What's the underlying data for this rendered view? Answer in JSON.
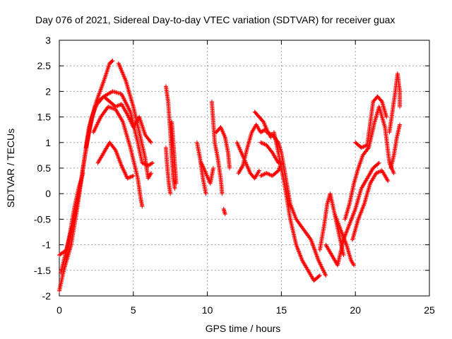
{
  "chart_data": {
    "type": "scatter",
    "title": "Day 076 of 2021, Sidereal Day-to-day VTEC variation (SDTVAR) for receiver guax",
    "xlabel": "GPS time / hours",
    "ylabel": "SDTVAR / TECUs",
    "xlim": [
      0,
      25
    ],
    "ylim": [
      -2,
      3
    ],
    "xticks": [
      "0",
      "5",
      "10",
      "15",
      "20",
      "25"
    ],
    "yticks": [
      "-2",
      "-1.5",
      "-1",
      "-0.5",
      "0",
      "0.5",
      "1",
      "1.5",
      "2",
      "2.5",
      "3"
    ],
    "xtick_values": [
      0,
      5,
      10,
      15,
      20,
      25
    ],
    "ytick_values": [
      -2,
      -1.5,
      -1,
      -0.5,
      0,
      0.5,
      1,
      1.5,
      2,
      2.5,
      3
    ],
    "grid": true,
    "marker": "+",
    "series": [
      {
        "name": "SDTVAR",
        "color": "#ff0000",
        "tracks": [
          [
            [
              0,
              -1.9
            ],
            [
              0.3,
              -1.5
            ],
            [
              0.8,
              -1.0
            ],
            [
              1.2,
              -0.3
            ],
            [
              1.6,
              0.5
            ],
            [
              2.0,
              1.2
            ],
            [
              2.4,
              1.7
            ],
            [
              3.0,
              1.9
            ],
            [
              3.6,
              2.0
            ],
            [
              4.2,
              1.95
            ],
            [
              4.8,
              1.6
            ],
            [
              5.3,
              1.0
            ],
            [
              5.6,
              0.6
            ],
            [
              6.0,
              0.55
            ],
            [
              6.3,
              0.6
            ]
          ],
          [
            [
              0,
              -1.2
            ],
            [
              0.5,
              -1.1
            ],
            [
              1.0,
              -0.5
            ],
            [
              1.5,
              0.3
            ],
            [
              2.0,
              1.3
            ],
            [
              2.5,
              1.8
            ],
            [
              3.0,
              2.2
            ],
            [
              3.4,
              2.55
            ],
            [
              3.6,
              2.6
            ]
          ],
          [
            [
              4.0,
              2.55
            ],
            [
              4.5,
              2.2
            ],
            [
              5.0,
              1.7
            ],
            [
              5.4,
              1.2
            ],
            [
              5.8,
              0.7
            ],
            [
              6.0,
              0.3
            ],
            [
              6.2,
              0.4
            ]
          ],
          [
            [
              2.3,
              1.2
            ],
            [
              2.8,
              1.5
            ],
            [
              3.3,
              1.7
            ],
            [
              3.8,
              1.65
            ],
            [
              4.3,
              1.4
            ],
            [
              4.8,
              0.9
            ],
            [
              5.3,
              0.3
            ],
            [
              5.5,
              -0.1
            ],
            [
              5.6,
              -0.25
            ]
          ],
          [
            [
              2.6,
              0.6
            ],
            [
              3.0,
              0.8
            ],
            [
              3.4,
              1.0
            ],
            [
              3.8,
              0.85
            ],
            [
              4.2,
              0.55
            ],
            [
              4.6,
              0.3
            ],
            [
              5.0,
              0.35
            ]
          ],
          [
            [
              1.8,
              0.9
            ],
            [
              2.2,
              1.5
            ],
            [
              2.6,
              1.8
            ],
            [
              3.0,
              1.9
            ],
            [
              3.4,
              1.8
            ],
            [
              3.8,
              1.7
            ],
            [
              4.2,
              1.75
            ],
            [
              4.6,
              1.55
            ],
            [
              5.0,
              1.3
            ],
            [
              5.4,
              1.5
            ],
            [
              5.8,
              1.15
            ],
            [
              6.2,
              1.0
            ]
          ],
          [
            [
              0.1,
              -1.55
            ],
            [
              0.4,
              -1.2
            ],
            [
              0.7,
              -0.8
            ],
            [
              1.0,
              -0.3
            ],
            [
              1.3,
              0.1
            ],
            [
              1.6,
              0.4
            ]
          ]
        ],
        "segments": [
          [
            [
              7.2,
              2.1
            ],
            [
              7.35,
              1.8
            ],
            [
              7.5,
              1.2
            ],
            [
              7.6,
              0.7
            ],
            [
              7.7,
              0.3
            ],
            [
              7.8,
              0.1
            ]
          ],
          [
            [
              7.2,
              0.9
            ],
            [
              7.3,
              0.5
            ],
            [
              7.4,
              0.2
            ],
            [
              7.5,
              0.0
            ]
          ],
          [
            [
              7.6,
              1.4
            ],
            [
              7.7,
              1.0
            ],
            [
              7.8,
              0.6
            ],
            [
              7.9,
              0.2
            ]
          ],
          [
            [
              9.3,
              1.0
            ],
            [
              9.5,
              0.7
            ],
            [
              9.7,
              0.3
            ],
            [
              9.9,
              0.0
            ]
          ],
          [
            [
              9.6,
              0.6
            ],
            [
              9.9,
              0.4
            ],
            [
              10.2,
              0.2
            ],
            [
              10.4,
              0.5
            ]
          ],
          [
            [
              10.3,
              1.8
            ],
            [
              10.4,
              1.4
            ],
            [
              10.5,
              1.0
            ],
            [
              10.7,
              0.7
            ],
            [
              10.9,
              0.3
            ],
            [
              11.0,
              0.0
            ]
          ],
          [
            [
              10.6,
              1.2
            ],
            [
              10.9,
              1.3
            ],
            [
              11.2,
              1.1
            ],
            [
              11.4,
              0.8
            ],
            [
              11.5,
              0.5
            ]
          ],
          [
            [
              11.1,
              -0.3
            ],
            [
              11.2,
              -0.4
            ]
          ],
          [
            [
              12.0,
              1.0
            ],
            [
              12.3,
              0.8
            ],
            [
              12.6,
              0.6
            ],
            [
              12.9,
              0.4
            ],
            [
              13.2,
              0.3
            ],
            [
              13.5,
              0.45
            ]
          ],
          [
            [
              12.1,
              0.4
            ],
            [
              12.4,
              0.55
            ],
            [
              12.7,
              0.9
            ],
            [
              13.0,
              1.2
            ],
            [
              13.3,
              1.35
            ],
            [
              13.6,
              1.2
            ],
            [
              13.9,
              1.25
            ]
          ],
          [
            [
              13.2,
              1.6
            ],
            [
              13.5,
              1.5
            ],
            [
              13.8,
              1.4
            ],
            [
              14.1,
              1.2
            ],
            [
              14.3,
              1.1
            ]
          ],
          [
            [
              13.6,
              0.35
            ],
            [
              14.0,
              0.4
            ],
            [
              14.4,
              0.35
            ],
            [
              14.8,
              0.45
            ],
            [
              15.0,
              0.6
            ]
          ],
          [
            [
              13.6,
              1.0
            ],
            [
              14.0,
              0.95
            ],
            [
              14.4,
              0.8
            ],
            [
              14.8,
              0.6
            ]
          ],
          [
            [
              14.0,
              1.2
            ],
            [
              14.4,
              1.15
            ],
            [
              14.8,
              1.0
            ],
            [
              15.0,
              0.8
            ],
            [
              15.3,
              0.3
            ],
            [
              15.6,
              -0.2
            ],
            [
              16.0,
              -0.5
            ],
            [
              16.5,
              -0.7
            ],
            [
              17.0,
              -0.9
            ],
            [
              17.5,
              -1.3
            ],
            [
              18.0,
              -1.6
            ]
          ],
          [
            [
              14.5,
              1.2
            ],
            [
              14.8,
              0.8
            ],
            [
              15.2,
              0.2
            ],
            [
              15.6,
              -0.5
            ],
            [
              16.0,
              -1.0
            ],
            [
              16.4,
              -1.3
            ],
            [
              16.8,
              -1.5
            ],
            [
              17.2,
              -1.7
            ],
            [
              17.6,
              -1.6
            ]
          ],
          [
            [
              17.6,
              -1.1
            ],
            [
              17.9,
              -0.6
            ],
            [
              18.1,
              -0.2
            ],
            [
              18.3,
              0.0
            ],
            [
              18.6,
              -0.4
            ],
            [
              18.9,
              -0.8
            ],
            [
              19.2,
              -1.2
            ]
          ],
          [
            [
              18.0,
              -1.0
            ],
            [
              18.4,
              -1.2
            ],
            [
              18.8,
              -1.4
            ],
            [
              19.2,
              -0.9
            ],
            [
              19.6,
              -0.6
            ],
            [
              20.0,
              -0.3
            ],
            [
              20.4,
              0.1
            ],
            [
              20.8,
              0.3
            ],
            [
              21.2,
              0.5
            ],
            [
              21.6,
              0.6
            ]
          ],
          [
            [
              18.6,
              -0.4
            ],
            [
              19.0,
              -0.7
            ],
            [
              19.4,
              -1.0
            ],
            [
              19.7,
              -1.3
            ],
            [
              19.9,
              -1.4
            ]
          ],
          [
            [
              19.3,
              -0.5
            ],
            [
              19.6,
              -0.2
            ],
            [
              19.9,
              0.2
            ],
            [
              20.2,
              0.5
            ],
            [
              20.5,
              0.75
            ],
            [
              20.9,
              0.9
            ],
            [
              21.3,
              1.4
            ],
            [
              21.6,
              1.7
            ],
            [
              22.0,
              1.3
            ],
            [
              22.3,
              0.6
            ],
            [
              22.6,
              0.4
            ]
          ],
          [
            [
              20.0,
              1.0
            ],
            [
              20.4,
              0.9
            ],
            [
              20.8,
              0.95
            ],
            [
              21.2,
              1.8
            ],
            [
              21.5,
              1.9
            ],
            [
              21.8,
              1.8
            ],
            [
              22.1,
              1.5
            ]
          ],
          [
            [
              19.8,
              -0.9
            ],
            [
              20.2,
              -0.5
            ],
            [
              20.6,
              -0.2
            ],
            [
              21.0,
              0.2
            ],
            [
              21.4,
              0.4
            ],
            [
              21.8,
              0.45
            ],
            [
              22.2,
              0.25
            ]
          ],
          [
            [
              22.3,
              1.2
            ],
            [
              22.5,
              1.6
            ],
            [
              22.7,
              2.0
            ],
            [
              22.85,
              2.35
            ],
            [
              23.0,
              2.0
            ],
            [
              23.0,
              1.7
            ]
          ],
          [
            [
              22.4,
              0.5
            ],
            [
              22.6,
              0.75
            ],
            [
              22.8,
              1.1
            ],
            [
              23.0,
              1.35
            ]
          ]
        ]
      }
    ]
  }
}
